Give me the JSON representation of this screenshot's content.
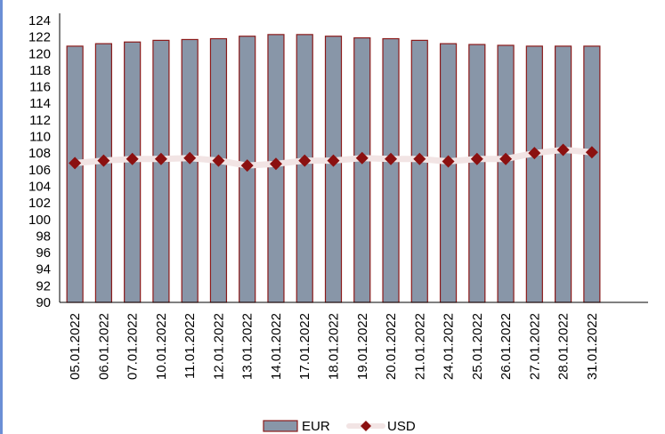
{
  "colors": {
    "eur_bar_fill": "#8896a8",
    "eur_bar_border": "#8b1a1a",
    "usd_marker": "#8b1010",
    "usd_line": "#f2e4e4",
    "left_accent": "#6b8fd6"
  },
  "chart_data": {
    "type": "bar",
    "categories": [
      "05.01.2022",
      "06.01.2022",
      "07.01.2022",
      "10.01.2022",
      "11.01.2022",
      "12.01.2022",
      "13.01.2022",
      "14.01.2022",
      "17.01.2022",
      "18.01.2022",
      "19.01.2022",
      "20.01.2022",
      "21.01.2022",
      "24.01.2022",
      "25.01.2022",
      "26.01.2022",
      "27.01.2022",
      "28.01.2022",
      "31.01.2022"
    ],
    "series": [
      {
        "name": "EUR",
        "type": "bar",
        "values": [
          120.9,
          121.2,
          121.4,
          121.6,
          121.7,
          121.8,
          122.1,
          122.3,
          122.3,
          122.1,
          121.9,
          121.8,
          121.6,
          121.2,
          121.1,
          121.0,
          120.9,
          120.9,
          120.9
        ]
      },
      {
        "name": "USD",
        "type": "line",
        "values": [
          106.8,
          107.1,
          107.3,
          107.3,
          107.4,
          107.1,
          106.5,
          106.7,
          107.1,
          107.1,
          107.4,
          107.3,
          107.3,
          107.0,
          107.3,
          107.3,
          108.0,
          108.4,
          108.1
        ]
      }
    ],
    "ylim": [
      90,
      124
    ],
    "yticks": [
      90,
      92,
      94,
      96,
      98,
      100,
      102,
      104,
      106,
      108,
      110,
      112,
      114,
      116,
      118,
      120,
      122,
      124
    ],
    "legend": [
      "EUR",
      "USD"
    ],
    "legend_position": "bottom",
    "grid": false,
    "title": "",
    "xlabel": "",
    "ylabel": ""
  }
}
